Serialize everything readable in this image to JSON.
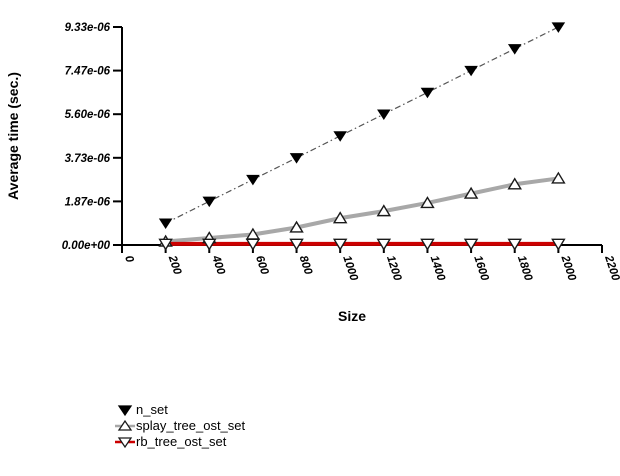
{
  "chart_data": {
    "type": "line",
    "title": "",
    "xlabel": "Size",
    "ylabel": "Average time (sec.)",
    "xlim": [
      0,
      2200
    ],
    "ylim": [
      0,
      9.333e-06
    ],
    "grid": false,
    "legend_position": "bottom-left",
    "x": [
      200,
      400,
      600,
      800,
      1000,
      1200,
      1400,
      1600,
      1800,
      2000
    ],
    "xticks": {
      "values": [
        0,
        200,
        400,
        600,
        800,
        1000,
        1200,
        1400,
        1600,
        1800,
        2000,
        2200
      ],
      "labels": [
        "0",
        "200",
        "400",
        "600",
        "800",
        "1000",
        "1200",
        "1400",
        "1600",
        "1800",
        "2000",
        "2200"
      ]
    },
    "yticks": {
      "values": [
        0,
        1.867e-06,
        3.733e-06,
        5.6e-06,
        7.467e-06,
        9.333e-06
      ],
      "labels": [
        "0.00e+00",
        "1.87e-06",
        "3.73e-06",
        "5.60e-06",
        "7.47e-06",
        "9.33e-06"
      ]
    },
    "series": [
      {
        "name": "n_set",
        "marker": "triangle-down-filled",
        "marker_color": "#000000",
        "line_color": "#555555",
        "line_width": 1.2,
        "line_dash": "6,3,1.5,3",
        "values": [
          9.33e-07,
          1.87e-06,
          2.8e-06,
          3.73e-06,
          4.67e-06,
          5.6e-06,
          6.53e-06,
          7.47e-06,
          8.4e-06,
          9.33e-06
        ]
      },
      {
        "name": "splay_tree_ost_set",
        "marker": "triangle-up-open",
        "marker_color": "#ffffff",
        "line_color": "#a8a8a8",
        "line_width": 4,
        "line_dash": "",
        "values": [
          1.5e-07,
          3e-07,
          4.5e-07,
          7.5e-07,
          1.15e-06,
          1.45e-06,
          1.8e-06,
          2.2e-06,
          2.6e-06,
          2.85e-06
        ]
      },
      {
        "name": "rb_tree_ost_set",
        "marker": "triangle-down-open",
        "marker_color": "#ffffff",
        "line_color": "#cc0000",
        "line_width": 4,
        "line_dash": "",
        "values": [
          5e-08,
          5e-08,
          5e-08,
          5e-08,
          5e-08,
          5e-08,
          5e-08,
          5e-08,
          5e-08,
          5e-08
        ]
      }
    ]
  }
}
